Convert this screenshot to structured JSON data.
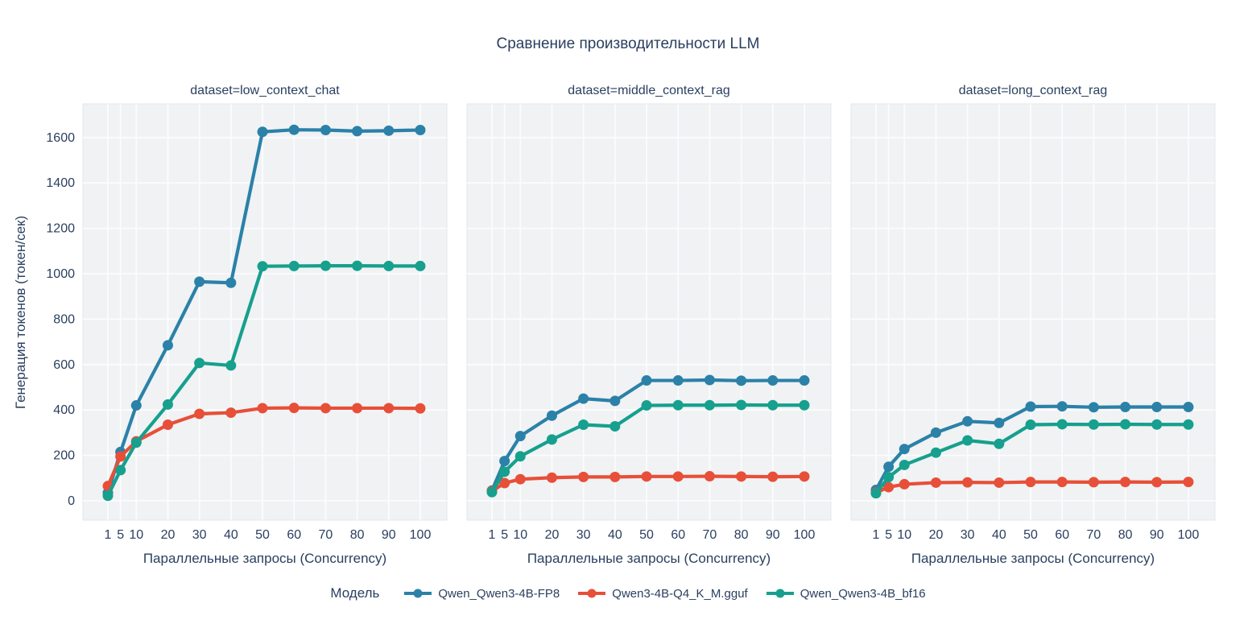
{
  "colors": {
    "text": "#2a3f5f",
    "plot_bg": "#f0f2f4",
    "grid": "#fbfcfd",
    "panel_border": "#e3e6ea"
  },
  "legend": {
    "title": "Модель"
  },
  "chart_data": {
    "type": "line",
    "title": "Сравнение производительности LLM",
    "xlabel": "Параллельные запросы (Concurrency)",
    "ylabel": "Генерация токенов (токен/сек)",
    "x": [
      1,
      5,
      10,
      20,
      30,
      40,
      50,
      60,
      70,
      80,
      90,
      100
    ],
    "x_ticks": [
      1,
      5,
      10,
      20,
      30,
      40,
      50,
      60,
      70,
      80,
      90,
      100
    ],
    "y_ticks": [
      0,
      200,
      400,
      600,
      800,
      1000,
      1200,
      1400,
      1600
    ],
    "ylim": [
      -85,
      1750
    ],
    "grid": true,
    "legend_position": "bottom",
    "series_meta": [
      {
        "name": "Qwen_Qwen3-4B-FP8",
        "color": "#2b81a8"
      },
      {
        "name": "Qwen3-4B-Q4_K_M.gguf",
        "color": "#e74f38"
      },
      {
        "name": "Qwen_Qwen3-4B_bf16",
        "color": "#16a08d"
      }
    ],
    "facets": [
      {
        "label": "dataset=low_context_chat",
        "series": [
          {
            "name": "Qwen_Qwen3-4B-FP8",
            "values": [
              35,
              215,
              420,
              685,
              965,
              960,
              1625,
              1634,
              1633,
              1628,
              1630,
              1633
            ]
          },
          {
            "name": "Qwen3-4B-Q4_K_M.gguf",
            "values": [
              65,
              195,
              262,
              335,
              383,
              388,
              408,
              409,
              408,
              408,
              408,
              407
            ]
          },
          {
            "name": "Qwen_Qwen3-4B_bf16",
            "values": [
              22,
              135,
              256,
              424,
              607,
              596,
              1033,
              1034,
              1035,
              1035,
              1034,
              1034
            ]
          }
        ]
      },
      {
        "label": "dataset=middle_context_rag",
        "series": [
          {
            "name": "Qwen_Qwen3-4B-FP8",
            "values": [
              45,
              175,
              285,
              375,
              450,
              440,
              530,
              530,
              532,
              529,
              530,
              530
            ]
          },
          {
            "name": "Qwen3-4B-Q4_K_M.gguf",
            "values": [
              42,
              78,
              95,
              102,
              105,
              105,
              107,
              107,
              108,
              107,
              106,
              107
            ]
          },
          {
            "name": "Qwen_Qwen3-4B_bf16",
            "values": [
              38,
              128,
              196,
              270,
              335,
              328,
              420,
              421,
              421,
              422,
              421,
              421
            ]
          }
        ]
      },
      {
        "label": "dataset=long_context_rag",
        "series": [
          {
            "name": "Qwen_Qwen3-4B-FP8",
            "values": [
              48,
              150,
              228,
              300,
              350,
              343,
              415,
              416,
              412,
              413,
              413,
              413
            ]
          },
          {
            "name": "Qwen3-4B-Q4_K_M.gguf",
            "values": [
              36,
              60,
              73,
              80,
              81,
              80,
              83,
              83,
              82,
              83,
              82,
              83
            ]
          },
          {
            "name": "Qwen_Qwen3-4B_bf16",
            "values": [
              33,
              104,
              158,
              212,
              266,
              251,
              335,
              337,
              336,
              337,
              336,
              336
            ]
          }
        ]
      }
    ]
  }
}
